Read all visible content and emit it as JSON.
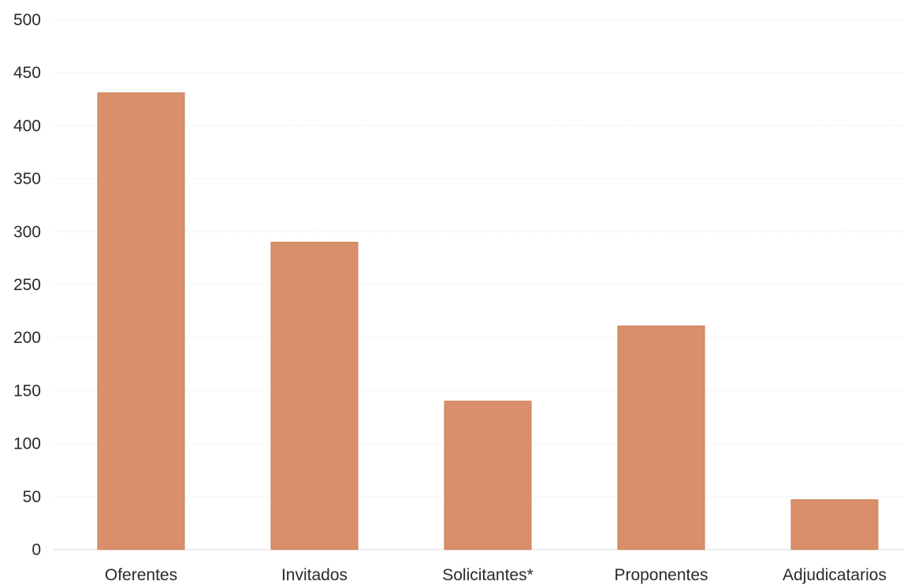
{
  "chart_data": {
    "type": "bar",
    "title": "",
    "xlabel": "",
    "ylabel": "",
    "categories": [
      "Oferentes",
      "Invitados",
      "Solicitantes*",
      "Proponentes",
      "Adjudicatarios"
    ],
    "values": [
      431,
      290,
      140,
      211,
      47
    ],
    "ylim": [
      0,
      500
    ],
    "yticks": [
      0,
      50,
      100,
      150,
      200,
      250,
      300,
      350,
      400,
      450,
      500
    ],
    "grid": true,
    "legend": "none",
    "colors": {
      "bar": "#d98f6a",
      "bar_edge": "#c97c57"
    }
  }
}
